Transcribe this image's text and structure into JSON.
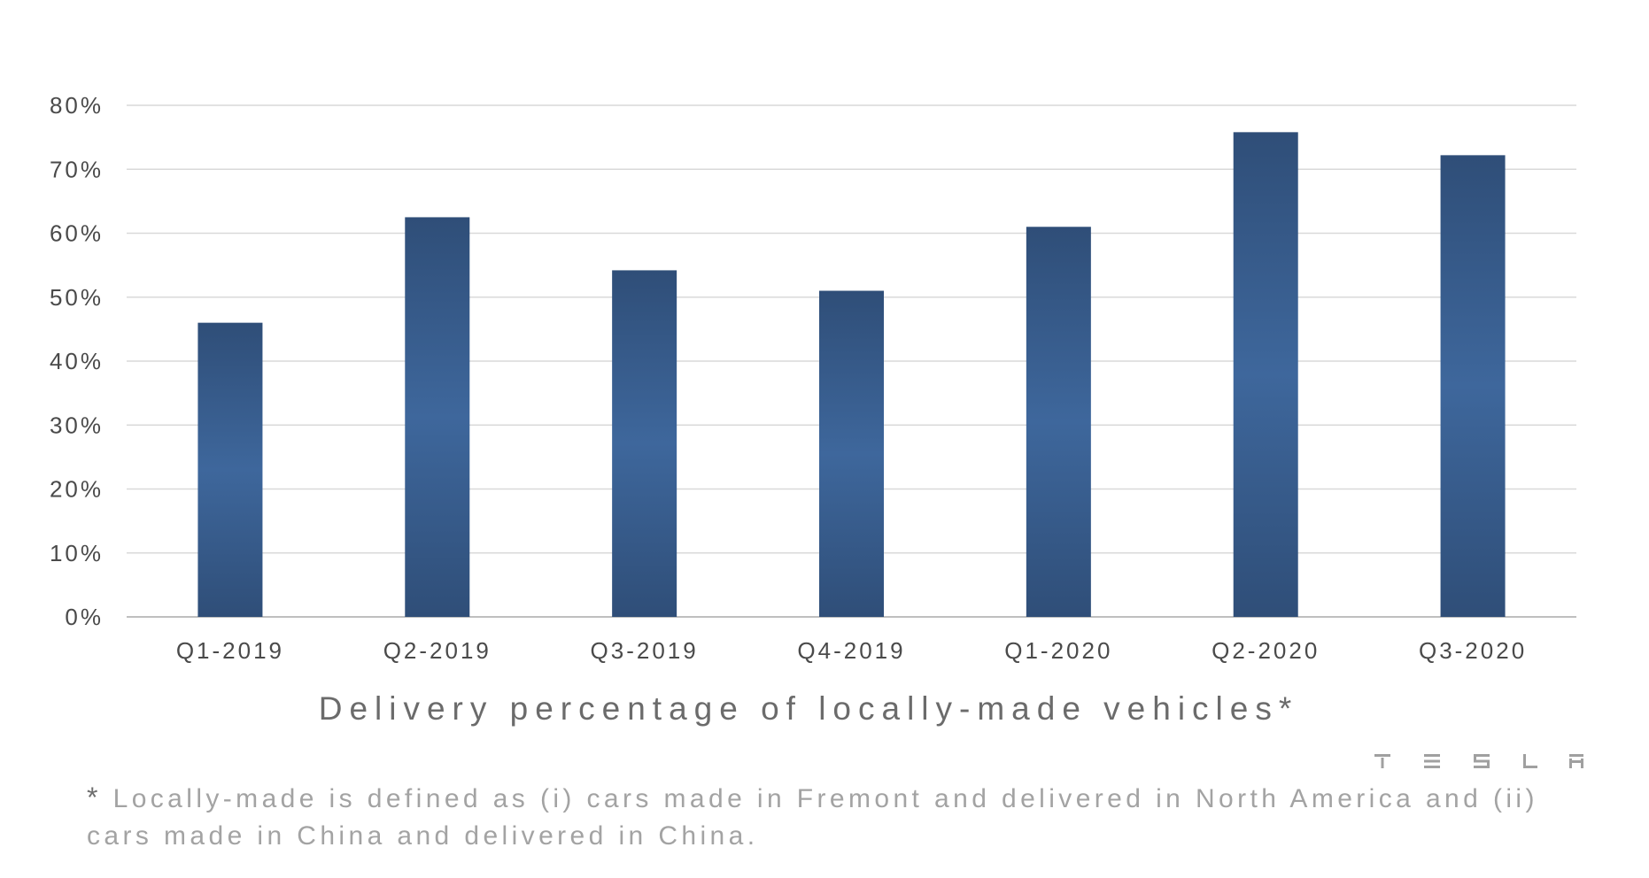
{
  "chart_data": {
    "type": "bar",
    "title": "Delivery percentage of locally-made vehicles*",
    "categories": [
      "Q1-2019",
      "Q2-2019",
      "Q3-2019",
      "Q4-2019",
      "Q1-2020",
      "Q2-2020",
      "Q3-2020"
    ],
    "values": [
      46,
      62.5,
      54.2,
      51,
      61,
      75.8,
      72.2
    ],
    "ylim": [
      0,
      80
    ],
    "y_ticks": [
      {
        "value": 0,
        "label": "0%"
      },
      {
        "value": 10,
        "label": "10%"
      },
      {
        "value": 20,
        "label": "20%"
      },
      {
        "value": 30,
        "label": "30%"
      },
      {
        "value": 40,
        "label": "40%"
      },
      {
        "value": 50,
        "label": "50%"
      },
      {
        "value": 60,
        "label": "60%"
      },
      {
        "value": 70,
        "label": "70%"
      },
      {
        "value": 80,
        "label": "80%"
      }
    ],
    "grid": true,
    "legend": "none",
    "colors": {
      "bar_edge": "#2f4e78",
      "bar_center": "#3e679c",
      "gridline": "#d9d9d9",
      "axis": "#bfbfbf"
    }
  },
  "footnote": {
    "marker": "*",
    "text": "Locally-made is defined as (i) cars made in Fremont and delivered in North America and (ii) cars made in China and delivered in China."
  },
  "logo": {
    "text": "TESLA",
    "color": "#a0a0a0"
  }
}
